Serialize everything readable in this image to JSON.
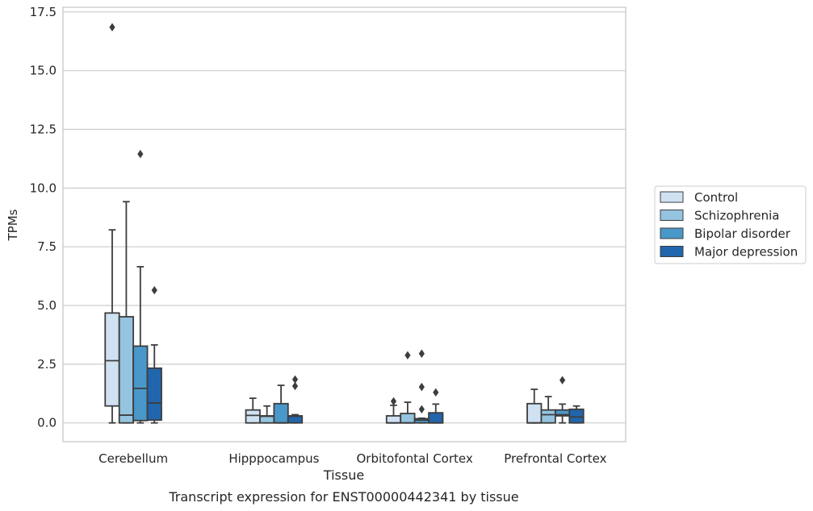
{
  "chart_data": {
    "type": "box",
    "title": "",
    "caption": "Transcript expression for ENST00000442341 by tissue",
    "xlabel": "Tissue",
    "ylabel": "TPMs",
    "ylim": [
      -0.8,
      17.7
    ],
    "yticks": [
      0.0,
      2.5,
      5.0,
      7.5,
      10.0,
      12.5,
      15.0,
      17.5
    ],
    "ytick_labels": [
      "0.0",
      "2.5",
      "5.0",
      "7.5",
      "10.0",
      "12.5",
      "15.0",
      "17.5"
    ],
    "grid": "horizontal",
    "legend_position": "right",
    "categories": [
      "Cerebellum",
      "Hipppocampus",
      "Orbitofontal Cortex",
      "Prefrontal Cortex"
    ],
    "series": [
      {
        "name": "Control",
        "color": "#d0e1f2",
        "boxes": [
          {
            "q1": 0.72,
            "median": 2.65,
            "q3": 4.68,
            "whisker_low": 0.0,
            "whisker_high": 8.22,
            "outliers": [
              16.85
            ]
          },
          {
            "q1": 0.0,
            "median": 0.32,
            "q3": 0.55,
            "whisker_low": 0.0,
            "whisker_high": 1.05,
            "outliers": []
          },
          {
            "q1": 0.0,
            "median": 0.0,
            "q3": 0.3,
            "whisker_low": 0.0,
            "whisker_high": 0.75,
            "outliers": [
              0.92
            ]
          },
          {
            "q1": 0.0,
            "median": 0.0,
            "q3": 0.82,
            "whisker_low": 0.0,
            "whisker_high": 1.43,
            "outliers": []
          }
        ]
      },
      {
        "name": "Schizophrenia",
        "color": "#94c4df",
        "boxes": [
          {
            "q1": 0.0,
            "median": 0.33,
            "q3": 4.52,
            "whisker_low": 0.0,
            "whisker_high": 9.42,
            "outliers": []
          },
          {
            "q1": 0.0,
            "median": 0.28,
            "q3": 0.3,
            "whisker_low": 0.0,
            "whisker_high": 0.72,
            "outliers": []
          },
          {
            "q1": 0.0,
            "median": 0.0,
            "q3": 0.4,
            "whisker_low": 0.0,
            "whisker_high": 0.88,
            "outliers": [
              2.88
            ]
          },
          {
            "q1": 0.0,
            "median": 0.35,
            "q3": 0.55,
            "whisker_low": 0.0,
            "whisker_high": 1.12,
            "outliers": []
          }
        ]
      },
      {
        "name": "Bipolar disorder",
        "color": "#4a98c9",
        "boxes": [
          {
            "q1": 0.1,
            "median": 1.47,
            "q3": 3.27,
            "whisker_low": 0.0,
            "whisker_high": 6.65,
            "outliers": [
              11.45
            ]
          },
          {
            "q1": 0.0,
            "median": 0.0,
            "q3": 0.82,
            "whisker_low": 0.0,
            "whisker_high": 1.6,
            "outliers": []
          },
          {
            "q1": 0.0,
            "median": 0.12,
            "q3": 0.18,
            "whisker_low": 0.0,
            "whisker_high": 0.2,
            "outliers": [
              0.58,
              1.53,
              2.95
            ]
          },
          {
            "q1": 0.3,
            "median": 0.35,
            "q3": 0.55,
            "whisker_low": 0.0,
            "whisker_high": 0.8,
            "outliers": [
              1.82
            ]
          }
        ]
      },
      {
        "name": "Major depression",
        "color": "#2166ac",
        "boxes": [
          {
            "q1": 0.12,
            "median": 0.85,
            "q3": 2.33,
            "whisker_low": 0.0,
            "whisker_high": 3.32,
            "outliers": [
              5.65
            ]
          },
          {
            "q1": 0.0,
            "median": 0.28,
            "q3": 0.3,
            "whisker_low": 0.0,
            "whisker_high": 0.35,
            "outliers": [
              1.57,
              1.85
            ]
          },
          {
            "q1": 0.0,
            "median": 0.0,
            "q3": 0.43,
            "whisker_low": 0.0,
            "whisker_high": 0.8,
            "outliers": [
              1.3
            ]
          },
          {
            "q1": 0.0,
            "median": 0.25,
            "q3": 0.58,
            "whisker_low": 0.0,
            "whisker_high": 0.72,
            "outliers": []
          }
        ]
      }
    ]
  }
}
